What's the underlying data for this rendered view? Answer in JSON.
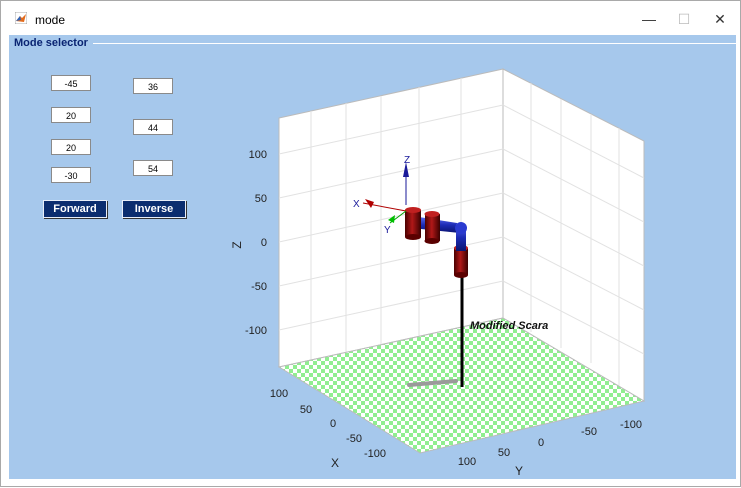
{
  "window": {
    "title": "mode",
    "icon": "matlab-icon",
    "minimize": "—",
    "maximize": "☐",
    "close": "✕"
  },
  "panel": {
    "title": "Mode selector"
  },
  "joint_inputs": [
    "-45",
    "20",
    "20",
    "-30"
  ],
  "position_inputs": [
    "36",
    "44",
    "54"
  ],
  "buttons": {
    "forward": "Forward",
    "inverse": "Inverse"
  },
  "plot": {
    "z_ticks": [
      "100",
      "50",
      "0",
      "-50",
      "-100"
    ],
    "x_ticks": [
      "100",
      "50",
      "0",
      "-50",
      "-100"
    ],
    "y_ticks": [
      "100",
      "50",
      "0",
      "-50",
      "-100"
    ],
    "x_label": "X",
    "y_label": "Y",
    "z_label": "Z",
    "frame_labels": {
      "x": "X",
      "y": "Y",
      "z": "Z"
    },
    "annotation": "Modified Scara",
    "floor_color": "#90ee90",
    "link_colors": {
      "base_link": "#7a0a0a",
      "arm": "#1c2bb5",
      "post": "#000000"
    }
  }
}
